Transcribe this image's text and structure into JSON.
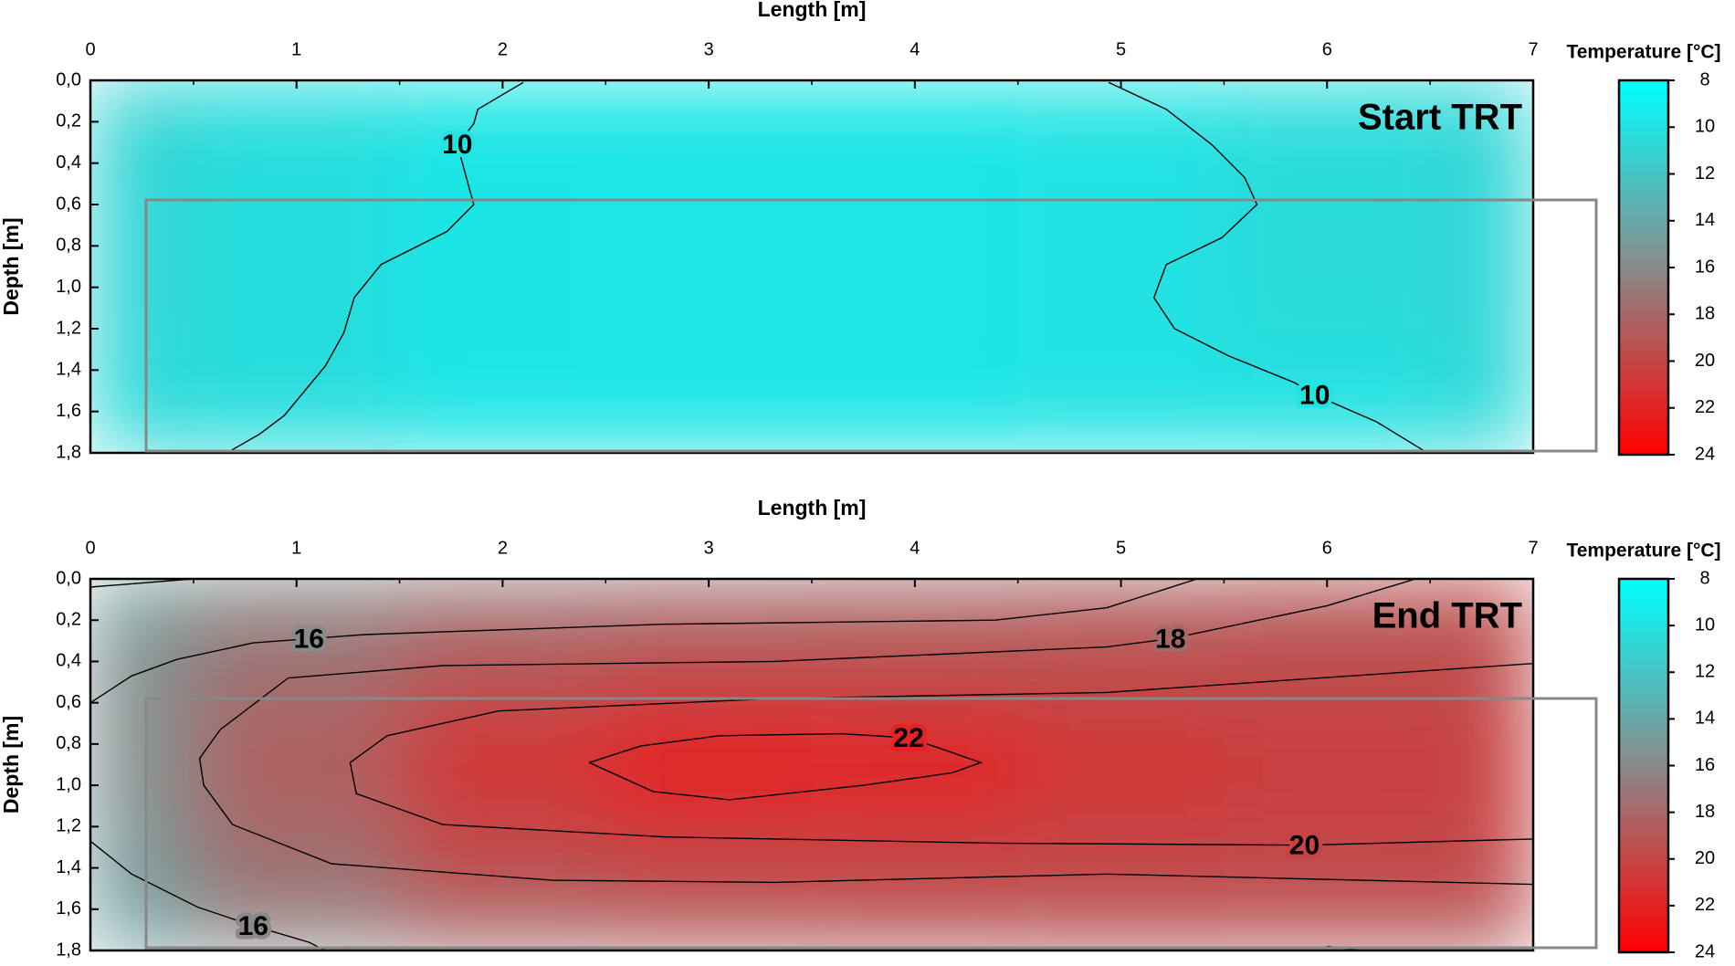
{
  "chart_data": [
    {
      "type": "contour",
      "title": "Start TRT",
      "x_label": "Length [m]",
      "y_label": "Depth [m]",
      "xlim": [
        0,
        7
      ],
      "xticks": [
        0,
        1,
        2,
        3,
        4,
        5,
        6,
        7
      ],
      "ylim": [
        0,
        1.8
      ],
      "y_reversed": true,
      "yticks": [
        {
          "value": 0,
          "label": "0,0"
        },
        {
          "value": 0.2,
          "label": "0,2"
        },
        {
          "value": 0.4,
          "label": "0,4"
        },
        {
          "value": 0.6,
          "label": "0,6"
        },
        {
          "value": 0.8,
          "label": "0,8"
        },
        {
          "value": 1.0,
          "label": "1,0"
        },
        {
          "value": 1.2,
          "label": "1,2"
        },
        {
          "value": 1.4,
          "label": "1,4"
        },
        {
          "value": 1.6,
          "label": "1,6"
        },
        {
          "value": 1.8,
          "label": "1,8"
        }
      ],
      "colorbar": {
        "label": "Temperature [°C]",
        "clim": [
          8,
          24
        ],
        "ticks": [
          8,
          10,
          12,
          14,
          16,
          18,
          20,
          22,
          24
        ],
        "colors": [
          "#00ffff",
          "#8a8a8a",
          "#ff0000"
        ]
      },
      "field": {
        "x": [
          0,
          1,
          2,
          3,
          4,
          5,
          6,
          7
        ],
        "y": [
          0,
          0.9,
          1.8
        ],
        "z": [
          [
            11,
            10.3,
            9.8,
            9.8,
            9.8,
            9.9,
            10.4,
            10.8
          ],
          [
            10.8,
            10.3,
            9.8,
            9.7,
            9.7,
            10,
            10.5,
            10.8
          ],
          [
            10.6,
            10.3,
            9.8,
            9.8,
            9.8,
            9.9,
            10,
            10.6
          ]
        ]
      },
      "contours": [
        {
          "level": 10,
          "x": [
            2.1,
            1.88,
            1.86,
            1.78,
            1.86,
            1.73,
            1.41,
            1.28,
            1.23,
            1.14,
            0.94,
            0.82,
            0.68
          ],
          "y": [
            0.01,
            0.14,
            0.21,
            0.31,
            0.6,
            0.73,
            0.89,
            1.05,
            1.22,
            1.38,
            1.62,
            1.71,
            1.79
          ]
        },
        {
          "level": 10,
          "x": [
            4.94,
            5.22,
            5.44,
            5.6,
            5.66,
            5.49,
            5.22,
            5.16,
            5.26,
            5.52,
            5.84,
            5.94,
            6.24,
            6.47
          ],
          "y": [
            0.01,
            0.14,
            0.31,
            0.47,
            0.6,
            0.76,
            0.89,
            1.05,
            1.2,
            1.33,
            1.46,
            1.52,
            1.65,
            1.79
          ]
        }
      ]
    },
    {
      "type": "contour",
      "title": "End TRT",
      "x_label": "Length [m]",
      "y_label": "Depth [m]",
      "xlim": [
        0,
        7
      ],
      "xticks": [
        0,
        1,
        2,
        3,
        4,
        5,
        6,
        7
      ],
      "ylim": [
        0,
        1.8
      ],
      "y_reversed": true,
      "yticks": [
        {
          "value": 0,
          "label": "0,0"
        },
        {
          "value": 0.2,
          "label": "0,2"
        },
        {
          "value": 0.4,
          "label": "0,4"
        },
        {
          "value": 0.6,
          "label": "0,6"
        },
        {
          "value": 0.8,
          "label": "0,8"
        },
        {
          "value": 1.0,
          "label": "1,0"
        },
        {
          "value": 1.2,
          "label": "1,2"
        },
        {
          "value": 1.4,
          "label": "1,4"
        },
        {
          "value": 1.6,
          "label": "1,6"
        },
        {
          "value": 1.8,
          "label": "1,8"
        }
      ],
      "colorbar": {
        "label": "Temperature [°C]",
        "clim": [
          8,
          24
        ],
        "ticks": [
          8,
          10,
          12,
          14,
          16,
          18,
          20,
          22,
          24
        ],
        "colors": [
          "#00ffff",
          "#8a8a8a",
          "#ff0000"
        ]
      },
      "field": {
        "x": [
          0,
          1,
          2,
          3,
          4,
          5,
          6,
          7
        ],
        "y": [
          0,
          0.4,
          0.9,
          1.4,
          1.8
        ],
        "z": [
          [
            14.5,
            15.5,
            16.5,
            17,
            17.2,
            17.8,
            18.5,
            19.5
          ],
          [
            15.5,
            17.5,
            19,
            19.5,
            19.5,
            19.5,
            19.5,
            19.5
          ],
          [
            15.5,
            18.5,
            21,
            22.3,
            22,
            21,
            20.5,
            20.3
          ],
          [
            15,
            17.5,
            19.5,
            20,
            20,
            19.9,
            19.8,
            19.8
          ],
          [
            14,
            16,
            17.5,
            18,
            18.3,
            18.5,
            18.5,
            18.5
          ]
        ]
      },
      "contours": [
        {
          "level": 15,
          "x": [
            0,
            0.5
          ],
          "y": [
            0.04,
            0
          ]
        },
        {
          "level": 16,
          "x": [
            0,
            0.2,
            0.42,
            0.79,
            1.06,
            1.33,
            2.78,
            4.39,
            4.93,
            5.37
          ],
          "y": [
            0.6,
            0.47,
            0.39,
            0.31,
            0.29,
            0.27,
            0.22,
            0.2,
            0.14,
            0
          ]
        },
        {
          "level": 18,
          "x": [
            6.43,
            6.0,
            5.24,
            4.93,
            3.32,
            1.71,
            0.96,
            0.63,
            0.53,
            0.55,
            0.69,
            1.17,
            2.24,
            3.32,
            4.93,
            7
          ],
          "y": [
            0,
            0.13,
            0.29,
            0.33,
            0.4,
            0.42,
            0.48,
            0.73,
            0.87,
            1.0,
            1.19,
            1.38,
            1.46,
            1.47,
            1.43,
            1.48
          ]
        },
        {
          "level": 20,
          "x": [
            7,
            4.93,
            3.32,
            1.98,
            1.44,
            1.26,
            1.29,
            1.71,
            2.78,
            4.39,
            5.89,
            7
          ],
          "y": [
            0.41,
            0.55,
            0.58,
            0.64,
            0.76,
            0.89,
            1.04,
            1.19,
            1.25,
            1.28,
            1.29,
            1.26
          ]
        },
        {
          "level": 22,
          "x": [
            2.42,
            2.67,
            3.05,
            3.64,
            3.97,
            4.12,
            4.32,
            4.18,
            3.75,
            3.1,
            2.73,
            2.42
          ],
          "y": [
            0.89,
            0.81,
            0.76,
            0.75,
            0.77,
            0.82,
            0.89,
            0.94,
            1.0,
            1.07,
            1.03,
            0.89
          ]
        },
        {
          "level": 16,
          "x": [
            0,
            0.2,
            0.52,
            0.79,
            1.06,
            1.14
          ],
          "y": [
            1.27,
            1.43,
            1.59,
            1.68,
            1.76,
            1.8
          ]
        },
        {
          "level": 18,
          "x": [
            6.0,
            6.16
          ],
          "y": [
            1.78,
            1.8
          ]
        }
      ]
    }
  ]
}
